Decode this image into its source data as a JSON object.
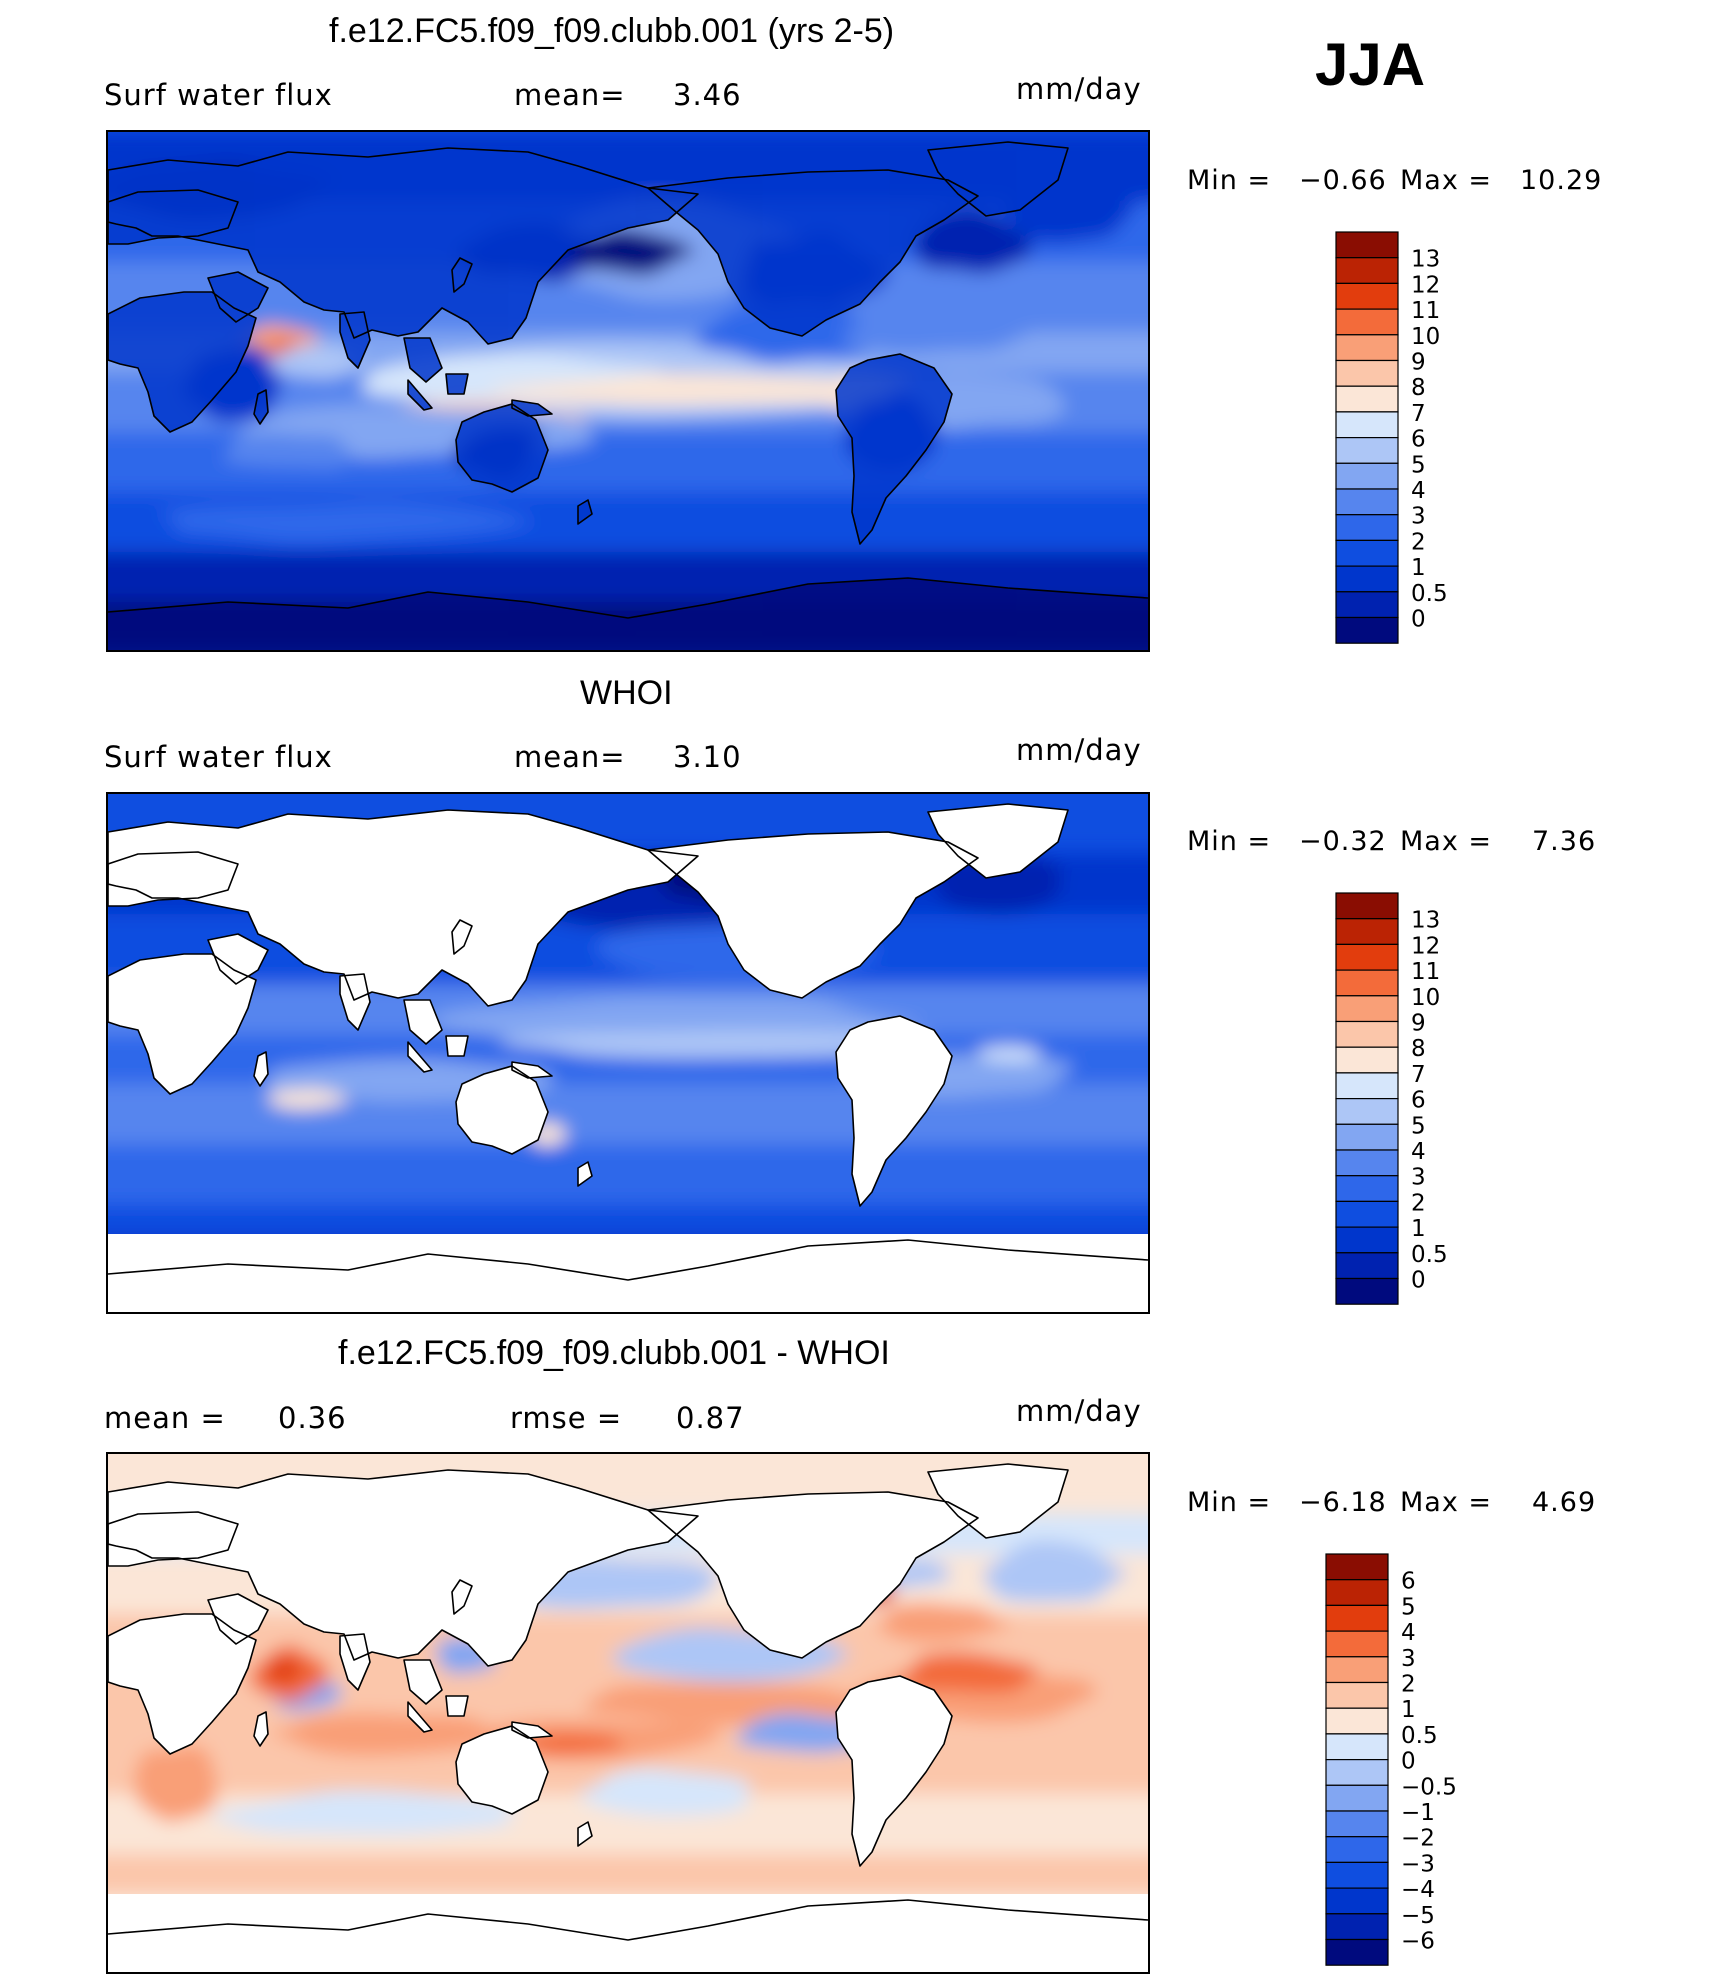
{
  "season": "JJA",
  "panels": [
    {
      "title": "f.e12.FC5.f09_f09.clubb.001 (yrs 2-5)",
      "left_label": "Surf water flux",
      "center_label": "mean=",
      "center_value": "3.46",
      "units": "mm/day",
      "min_label": "Min =",
      "min_value": "−0.66",
      "max_label": "Max =",
      "max_value": "10.29",
      "scheme": "abs",
      "land_white": false
    },
    {
      "title": "WHOI",
      "left_label": "Surf water flux",
      "center_label": "mean=",
      "center_value": "3.10",
      "units": "mm/day",
      "min_label": "Min =",
      "min_value": "−0.32",
      "max_label": "Max =",
      "max_value": "7.36",
      "scheme": "abs",
      "land_white": true
    },
    {
      "title": "f.e12.FC5.f09_f09.clubb.001 - WHOI",
      "left_label": "mean =",
      "left_value": "0.36",
      "center_label": "rmse =",
      "center_value": "0.87",
      "units": "mm/day",
      "min_label": "Min =",
      "min_value": "−6.18",
      "max_label": "Max =",
      "max_value": "4.69",
      "scheme": "diff",
      "land_white": true
    }
  ],
  "chart_data": [
    {
      "type": "heatmap",
      "title": "f.e12.FC5.f09_f09.clubb.001 (yrs 2-5)",
      "variable": "Surf water flux",
      "units": "mm/day",
      "mean": 3.46,
      "min": -0.66,
      "max": 10.29,
      "colorbar_levels": [
        "0",
        "0.5",
        "1",
        "2",
        "3",
        "4",
        "5",
        "6",
        "7",
        "8",
        "9",
        "10",
        "11",
        "12",
        "13"
      ],
      "colorbar_colors": [
        "#000a7e",
        "#0022b0",
        "#0036cc",
        "#0f4ee0",
        "#2e67ea",
        "#5685ee",
        "#82a6f2",
        "#adc6f6",
        "#d6e6fb",
        "#fbe6d7",
        "#fbc6aa",
        "#f99f77",
        "#f36b3a",
        "#e23d0d",
        "#bb2304",
        "#8a0d02"
      ]
    },
    {
      "type": "heatmap",
      "title": "WHOI",
      "variable": "Surf water flux",
      "units": "mm/day",
      "mean": 3.1,
      "min": -0.32,
      "max": 7.36,
      "colorbar_levels": [
        "0",
        "0.5",
        "1",
        "2",
        "3",
        "4",
        "5",
        "6",
        "7",
        "8",
        "9",
        "10",
        "11",
        "12",
        "13"
      ],
      "colorbar_colors": [
        "#000a7e",
        "#0022b0",
        "#0036cc",
        "#0f4ee0",
        "#2e67ea",
        "#5685ee",
        "#82a6f2",
        "#adc6f6",
        "#d6e6fb",
        "#fbe6d7",
        "#fbc6aa",
        "#f99f77",
        "#f36b3a",
        "#e23d0d",
        "#bb2304",
        "#8a0d02"
      ]
    },
    {
      "type": "heatmap",
      "title": "f.e12.FC5.f09_f09.clubb.001 - WHOI",
      "units": "mm/day",
      "mean": 0.36,
      "rmse": 0.87,
      "min": -6.18,
      "max": 4.69,
      "colorbar_levels": [
        "−6",
        "−5",
        "−4",
        "−3",
        "−2",
        "−1",
        "−0.5",
        "0",
        "0.5",
        "1",
        "2",
        "3",
        "4",
        "5",
        "6"
      ],
      "colorbar_colors": [
        "#000a7e",
        "#0022b0",
        "#0036cc",
        "#0f4ee0",
        "#2e67ea",
        "#5685ee",
        "#82a6f2",
        "#adc6f6",
        "#d6e6fb",
        "#fbe6d7",
        "#fbc6aa",
        "#f99f77",
        "#f36b3a",
        "#e23d0d",
        "#bb2304",
        "#8a0d02"
      ]
    }
  ]
}
